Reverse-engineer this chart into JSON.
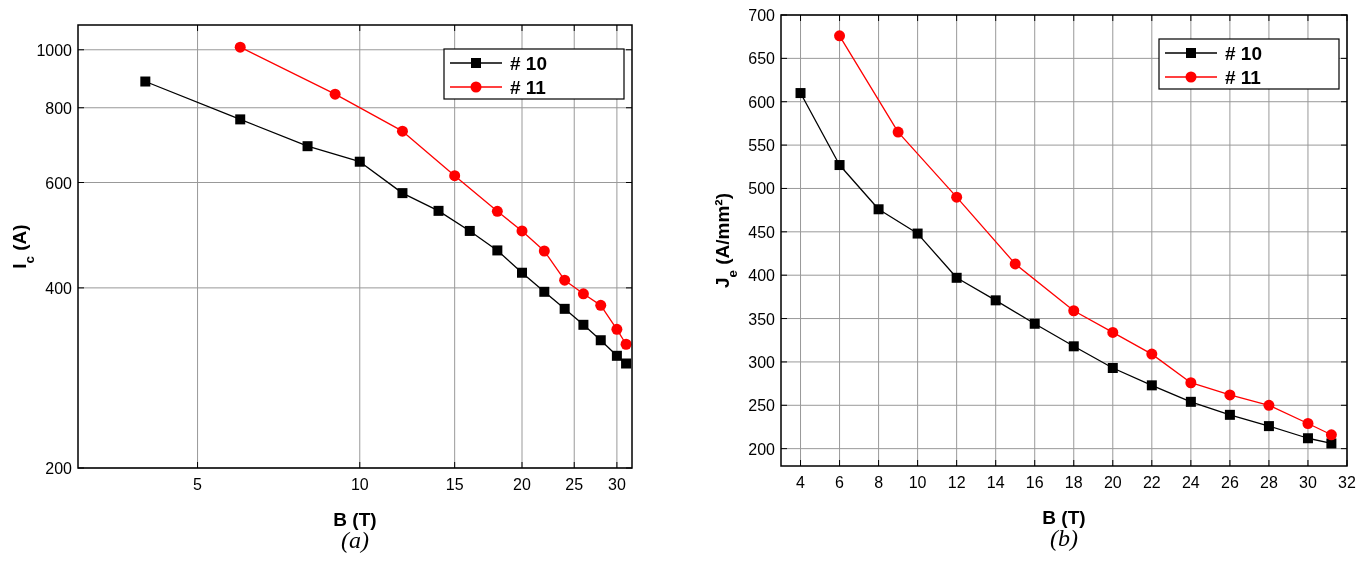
{
  "chart_data": [
    {
      "type": "line",
      "title": "(a)",
      "xlabel": "B (T)",
      "ylabel": "I$_{c}$ (A)",
      "log": "xy",
      "xlim": [
        3,
        32
      ],
      "xticks": [
        5,
        10,
        15,
        20,
        25,
        30
      ],
      "ylim": [
        200,
        1100
      ],
      "yticks": [
        200,
        400,
        600,
        800,
        1000
      ],
      "grid": true,
      "legend": "top right",
      "line_style": "solid",
      "series": [
        {
          "name": "# 10",
          "color": "#000000",
          "marker": "square",
          "x": [
            4,
            6,
            8,
            10,
            12,
            14,
            16,
            18,
            20,
            22,
            24,
            26,
            28,
            30,
            31.2
          ],
          "values": [
            885,
            765,
            690,
            650,
            576,
            538,
            498,
            462,
            424,
            394,
            369,
            347,
            327,
            308,
            299
          ]
        },
        {
          "name": "# 11",
          "color": "#ff0000",
          "marker": "circle",
          "x": [
            6,
            9,
            12,
            15,
            18,
            20,
            22,
            24,
            26,
            28,
            30,
            31.2
          ],
          "values": [
            1010,
            843,
            731,
            616,
            537,
            498,
            461,
            412,
            391,
            374,
            341,
            322
          ]
        }
      ]
    },
    {
      "type": "line",
      "title": "(b)",
      "xlabel": "B (T)",
      "ylabel": "J$_{e}$ (A/mm²)",
      "xlim": [
        3,
        32
      ],
      "xticks": [
        4,
        6,
        8,
        10,
        12,
        14,
        16,
        18,
        20,
        22,
        24,
        26,
        28,
        30,
        32
      ],
      "ylim": [
        180,
        700
      ],
      "yticks": [
        200,
        250,
        300,
        350,
        400,
        450,
        500,
        550,
        600,
        650,
        700
      ],
      "grid": true,
      "legend": "top right",
      "line_style": "solid",
      "series": [
        {
          "name": "# 10",
          "color": "#000000",
          "marker": "square",
          "x": [
            4,
            6,
            8,
            10,
            12,
            14,
            16,
            18,
            20,
            22,
            24,
            26,
            28,
            30,
            31.2
          ],
          "values": [
            610,
            527,
            476,
            448,
            397,
            371,
            344,
            318,
            293,
            273,
            254,
            239,
            226,
            212,
            206
          ]
        },
        {
          "name": "# 11",
          "color": "#ff0000",
          "marker": "circle",
          "x": [
            6,
            9,
            12,
            15,
            18,
            20,
            22,
            24,
            26,
            28,
            30,
            31.2
          ],
          "values": [
            676,
            565,
            490,
            413,
            359,
            334,
            309,
            276,
            262,
            250,
            229,
            216
          ]
        }
      ]
    }
  ]
}
